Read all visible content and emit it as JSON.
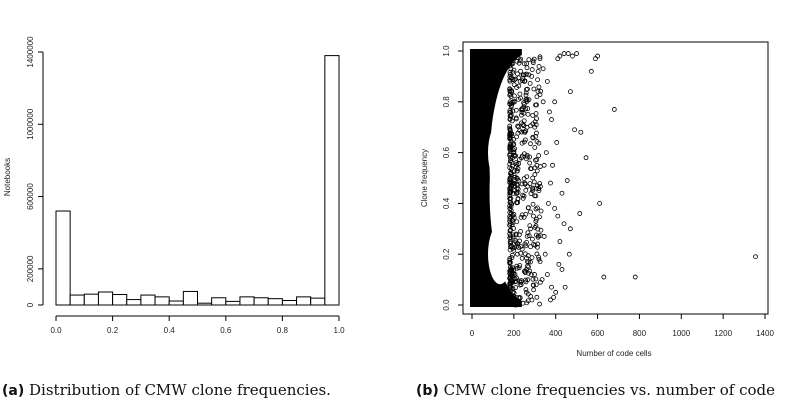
{
  "chart_data": [
    {
      "type": "bar",
      "subtype": "histogram",
      "title": "",
      "xlabel": "",
      "ylabel": "Notebooks",
      "bins": [
        [
          0.0,
          0.05
        ],
        [
          0.05,
          0.1
        ],
        [
          0.1,
          0.15
        ],
        [
          0.15,
          0.2
        ],
        [
          0.2,
          0.25
        ],
        [
          0.25,
          0.3
        ],
        [
          0.3,
          0.35
        ],
        [
          0.35,
          0.4
        ],
        [
          0.4,
          0.45
        ],
        [
          0.45,
          0.5
        ],
        [
          0.5,
          0.55
        ],
        [
          0.55,
          0.6
        ],
        [
          0.6,
          0.65
        ],
        [
          0.65,
          0.7
        ],
        [
          0.7,
          0.75
        ],
        [
          0.75,
          0.8
        ],
        [
          0.8,
          0.85
        ],
        [
          0.85,
          0.9
        ],
        [
          0.9,
          0.95
        ],
        [
          0.95,
          1.0
        ]
      ],
      "values": [
        520000,
        55000,
        60000,
        72000,
        58000,
        30000,
        55000,
        45000,
        22000,
        75000,
        10000,
        40000,
        20000,
        45000,
        40000,
        35000,
        25000,
        45000,
        38000,
        1380000
      ],
      "xlim": [
        0,
        1
      ],
      "ylim": [
        0,
        1400000
      ],
      "xticks": [
        "0.0",
        "0.2",
        "0.4",
        "0.6",
        "0.8",
        "1.0"
      ],
      "xtick_values": [
        0,
        0.2,
        0.4,
        0.6,
        0.8,
        1.0
      ],
      "yticks": [
        "0",
        "200000",
        "600000",
        "1000000",
        "1400000"
      ],
      "ytick_values": [
        0,
        200000,
        600000,
        1000000,
        1400000
      ],
      "caption_label": "(a)",
      "caption_text": "Distribution of CMW clone frequencies."
    },
    {
      "type": "scatter",
      "title": "",
      "xlabel": "Number of code cells",
      "ylabel": "Clone frequency",
      "xlim": [
        0,
        1400
      ],
      "ylim": [
        0,
        1
      ],
      "xticks": [
        "0",
        "200",
        "400",
        "600",
        "800",
        "1000",
        "1200",
        "1400"
      ],
      "xtick_values": [
        0,
        200,
        400,
        600,
        800,
        1000,
        1200,
        1400
      ],
      "yticks": [
        "0.0",
        "0.2",
        "0.4",
        "0.6",
        "0.8",
        "1.0"
      ],
      "ytick_values": [
        0,
        0.2,
        0.4,
        0.6,
        0.8,
        1.0
      ],
      "dense_region": {
        "x_range": [
          0,
          200
        ],
        "y_range": [
          0,
          1
        ]
      },
      "points": [
        [
          1355,
          0.19
        ],
        [
          780,
          0.11
        ],
        [
          630,
          0.11
        ],
        [
          680,
          0.77
        ],
        [
          610,
          0.4
        ],
        [
          600,
          0.98
        ],
        [
          590,
          0.97
        ],
        [
          570,
          0.92
        ],
        [
          545,
          0.58
        ],
        [
          520,
          0.68
        ],
        [
          490,
          0.69
        ],
        [
          470,
          0.84
        ],
        [
          440,
          0.99
        ],
        [
          420,
          0.98
        ],
        [
          410,
          0.97
        ],
        [
          500,
          0.99
        ],
        [
          480,
          0.98
        ],
        [
          460,
          0.99
        ],
        [
          515,
          0.36
        ],
        [
          470,
          0.3
        ],
        [
          440,
          0.32
        ],
        [
          455,
          0.49
        ],
        [
          430,
          0.44
        ],
        [
          410,
          0.35
        ],
        [
          395,
          0.38
        ],
        [
          400,
          0.05
        ],
        [
          390,
          0.03
        ],
        [
          380,
          0.07
        ],
        [
          375,
          0.02
        ],
        [
          360,
          0.12
        ],
        [
          350,
          0.2
        ],
        [
          345,
          0.27
        ],
        [
          330,
          0.37
        ],
        [
          320,
          0.45
        ],
        [
          310,
          0.55
        ],
        [
          300,
          0.62
        ],
        [
          380,
          0.73
        ],
        [
          370,
          0.76
        ],
        [
          395,
          0.8
        ],
        [
          360,
          0.88
        ],
        [
          340,
          0.93
        ],
        [
          325,
          0.97
        ],
        [
          300,
          0.7
        ],
        [
          290,
          0.5
        ],
        [
          280,
          0.3
        ],
        [
          270,
          0.15
        ],
        [
          260,
          0.05
        ],
        [
          355,
          0.6
        ],
        [
          345,
          0.55
        ],
        [
          335,
          0.1
        ],
        [
          320,
          0.18
        ],
        [
          305,
          0.33
        ],
        [
          310,
          0.82
        ],
        [
          285,
          0.9
        ],
        [
          265,
          0.85
        ],
        [
          255,
          0.65
        ],
        [
          245,
          0.42
        ],
        [
          240,
          0.22
        ],
        [
          235,
          0.08
        ],
        [
          250,
          0.95
        ],
        [
          465,
          0.2
        ],
        [
          420,
          0.25
        ],
        [
          430,
          0.14
        ],
        [
          445,
          0.07
        ],
        [
          385,
          0.55
        ],
        [
          405,
          0.64
        ],
        [
          415,
          0.16
        ],
        [
          365,
          0.4
        ],
        [
          375,
          0.48
        ],
        [
          340,
          0.8
        ]
      ],
      "caption_label": "(b)",
      "caption_text": "CMW clone frequencies vs. number of code"
    }
  ]
}
